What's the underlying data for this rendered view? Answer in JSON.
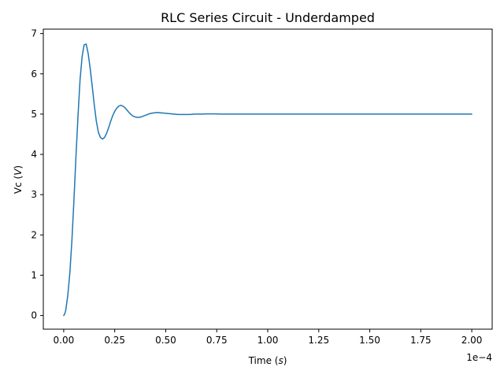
{
  "chart_data": {
    "type": "line",
    "title": "RLC Series Circuit - Underdamped",
    "xlabel": "Time",
    "xlabel_unit": "s",
    "ylabel": "Vc",
    "ylabel_unit": "V",
    "x_offset_text": "1e−4",
    "xlim": [
      -1e-05,
      0.00021
    ],
    "ylim": [
      -0.34,
      7.11
    ],
    "xticks": [
      0,
      2.5e-05,
      5e-05,
      7.5e-05,
      0.0001,
      0.000125,
      0.00015,
      0.000175,
      0.0002
    ],
    "xtick_labels": [
      "0.00",
      "0.25",
      "0.50",
      "0.75",
      "1.00",
      "1.25",
      "1.50",
      "1.75",
      "2.00"
    ],
    "yticks": [
      0,
      1,
      2,
      3,
      4,
      5,
      6,
      7
    ],
    "ytick_labels": [
      "0",
      "1",
      "2",
      "3",
      "4",
      "5",
      "6",
      "7"
    ],
    "grid": false,
    "line_color": "#1f77b4",
    "series": [
      {
        "x": [
          0,
          5e-07,
          1e-06,
          2e-06,
          3e-06,
          4e-06,
          5e-06,
          6e-06,
          7e-06,
          8e-06,
          9e-06,
          1e-05,
          1.1e-05,
          1.2e-05,
          1.3e-05,
          1.4e-05,
          1.5e-05,
          1.6e-05,
          1.7e-05,
          1.8e-05,
          1.9e-05,
          2e-05,
          2.1e-05,
          2.2e-05,
          2.3e-05,
          2.4e-05,
          2.5e-05,
          2.6e-05,
          2.7e-05,
          2.8e-05,
          2.9e-05,
          3e-05,
          3.1e-05,
          3.2e-05,
          3.3e-05,
          3.4e-05,
          3.5e-05,
          3.6e-05,
          3.7e-05,
          3.8e-05,
          3.9e-05,
          4e-05,
          4.1e-05,
          4.2e-05,
          4.4e-05,
          4.6e-05,
          4.8e-05,
          5e-05,
          5.2e-05,
          5.4e-05,
          5.6e-05,
          5.8e-05,
          6e-05,
          6.2e-05,
          6.4e-05,
          6.6e-05,
          6.8e-05,
          7e-05,
          7.2e-05,
          7.4e-05,
          7.6e-05,
          7.8e-05,
          8e-05,
          9e-05,
          0.0001,
          0.00012,
          0.00014,
          0.00016,
          0.00018,
          0.0002
        ],
        "y": [
          0,
          0.04,
          0.13,
          0.5,
          1.05,
          1.85,
          2.85,
          3.95,
          4.95,
          5.85,
          6.42,
          6.72,
          6.74,
          6.5,
          6.12,
          5.68,
          5.22,
          4.82,
          4.55,
          4.42,
          4.38,
          4.42,
          4.52,
          4.66,
          4.82,
          4.96,
          5.07,
          5.15,
          5.2,
          5.22,
          5.2,
          5.16,
          5.1,
          5.04,
          4.99,
          4.95,
          4.93,
          4.92,
          4.92,
          4.93,
          4.95,
          4.97,
          4.99,
          5.01,
          5.03,
          5.04,
          5.03,
          5.02,
          5.01,
          5.0,
          4.99,
          4.99,
          4.99,
          4.99,
          5.0,
          5.0,
          5.0,
          5.005,
          5.005,
          5.005,
          5.003,
          5.0,
          5.0,
          5.0,
          5.0,
          5.0,
          5.0,
          5.0,
          5.0,
          5.0
        ]
      }
    ]
  }
}
